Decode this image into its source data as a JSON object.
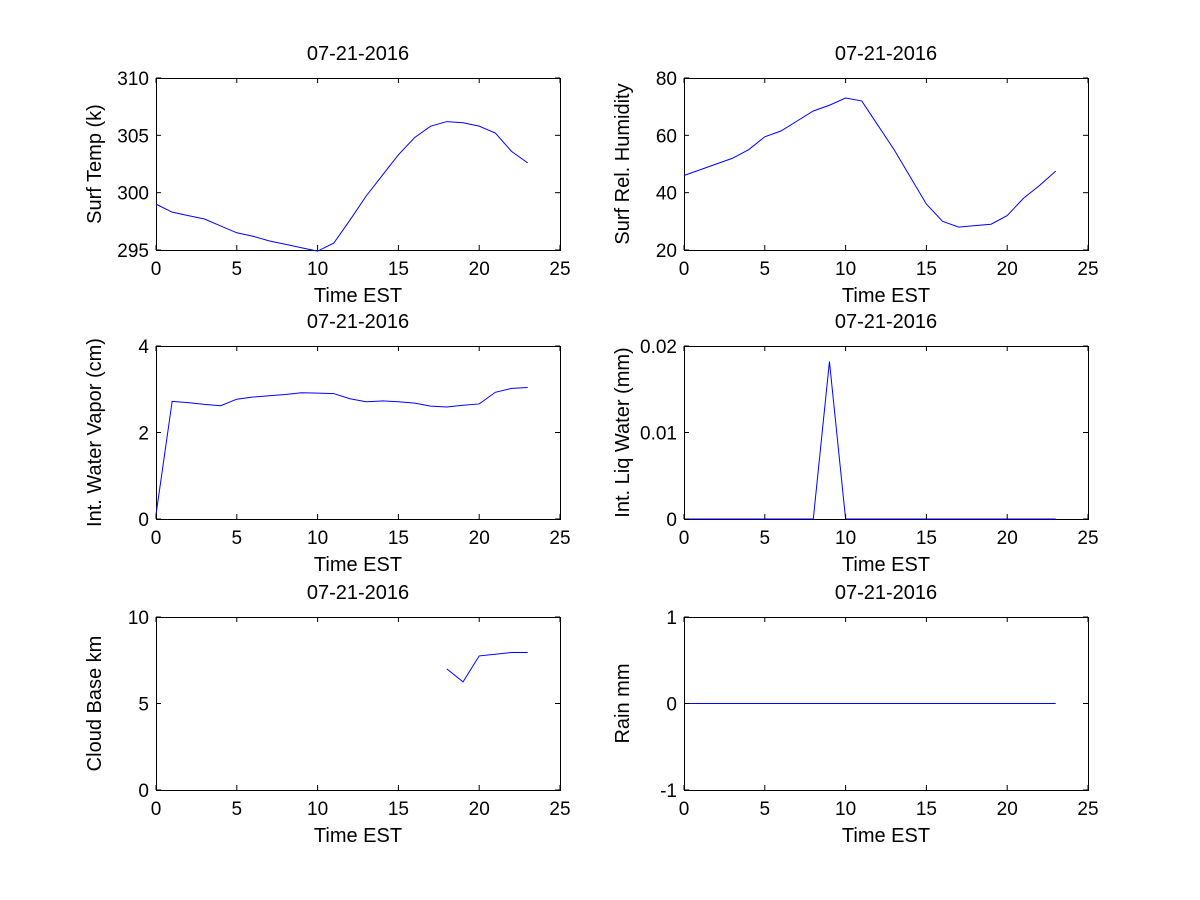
{
  "chart_data": [
    {
      "type": "line",
      "title": "07-21-2016",
      "xlabel": "Time EST",
      "ylabel": "Surf Temp (k)",
      "xlim": [
        0,
        25
      ],
      "ylim": [
        295,
        310
      ],
      "xticks": [
        0,
        5,
        10,
        15,
        20,
        25
      ],
      "yticks": [
        295,
        300,
        305,
        310
      ],
      "grid": false,
      "series": [
        {
          "color": "#0000ff",
          "x": [
            0,
            1,
            2,
            3,
            4,
            5,
            6,
            7,
            8,
            9,
            10,
            11,
            12,
            13,
            14,
            15,
            16,
            17,
            18,
            19,
            20,
            21,
            22,
            23
          ],
          "y": [
            299.0,
            298.3,
            298.0,
            297.7,
            297.1,
            296.5,
            296.2,
            295.8,
            295.5,
            295.2,
            294.9,
            295.6,
            297.6,
            299.7,
            301.5,
            303.3,
            304.8,
            305.8,
            306.2,
            306.1,
            305.8,
            305.2,
            303.6,
            302.6
          ]
        }
      ]
    },
    {
      "type": "line",
      "title": "07-21-2016",
      "xlabel": "Time EST",
      "ylabel": "Surf Rel. Humidity",
      "xlim": [
        0,
        25
      ],
      "ylim": [
        20,
        80
      ],
      "xticks": [
        0,
        5,
        10,
        15,
        20,
        25
      ],
      "yticks": [
        20,
        40,
        60,
        80
      ],
      "grid": false,
      "series": [
        {
          "color": "#0000ff",
          "x": [
            0,
            1,
            2,
            3,
            4,
            5,
            6,
            7,
            8,
            9,
            10,
            11,
            12,
            13,
            14,
            15,
            16,
            17,
            18,
            19,
            20,
            21,
            22,
            23
          ],
          "y": [
            46,
            48,
            50,
            52,
            55,
            59.5,
            61.5,
            65,
            68.5,
            70.5,
            73,
            72,
            63.5,
            55,
            45.5,
            36,
            30,
            28,
            28.5,
            29,
            32,
            38,
            42.5,
            47.5
          ]
        }
      ]
    },
    {
      "type": "line",
      "title": "07-21-2016",
      "xlabel": "Time EST",
      "ylabel": "Int. Water Vapor (cm)",
      "xlim": [
        0,
        25
      ],
      "ylim": [
        0,
        4
      ],
      "xticks": [
        0,
        5,
        10,
        15,
        20,
        25
      ],
      "yticks": [
        0,
        2,
        4
      ],
      "grid": false,
      "series": [
        {
          "color": "#0000ff",
          "x": [
            0,
            1,
            2,
            3,
            4,
            5,
            6,
            7,
            8,
            9,
            10,
            11,
            12,
            13,
            14,
            15,
            16,
            17,
            18,
            19,
            20,
            21,
            22,
            23
          ],
          "y": [
            0.1,
            2.72,
            2.69,
            2.65,
            2.62,
            2.77,
            2.82,
            2.85,
            2.88,
            2.92,
            2.91,
            2.9,
            2.78,
            2.71,
            2.73,
            2.71,
            2.68,
            2.61,
            2.59,
            2.63,
            2.66,
            2.93,
            3.02,
            3.04
          ]
        }
      ]
    },
    {
      "type": "line",
      "title": "07-21-2016",
      "xlabel": "Time EST",
      "ylabel": "Int. Liq Water (mm)",
      "xlim": [
        0,
        25
      ],
      "ylim": [
        0,
        0.02
      ],
      "xticks": [
        0,
        5,
        10,
        15,
        20,
        25
      ],
      "yticks": [
        0,
        0.01,
        0.02
      ],
      "grid": false,
      "series": [
        {
          "color": "#0000ff",
          "x": [
            0,
            1,
            2,
            3,
            4,
            5,
            6,
            7,
            8,
            9,
            10,
            11,
            12,
            13,
            14,
            15,
            16,
            17,
            18,
            19,
            20,
            21,
            22,
            23
          ],
          "y": [
            0,
            0,
            0,
            0,
            0,
            0,
            0,
            0,
            0,
            0.0182,
            0,
            0,
            0,
            0,
            0,
            0,
            0,
            0,
            0,
            0,
            0,
            0,
            0,
            0
          ]
        }
      ]
    },
    {
      "type": "line",
      "title": "07-21-2016",
      "xlabel": "Time EST",
      "ylabel": "Cloud Base km",
      "xlim": [
        0,
        25
      ],
      "ylim": [
        0,
        10
      ],
      "xticks": [
        0,
        5,
        10,
        15,
        20,
        25
      ],
      "yticks": [
        0,
        5,
        10
      ],
      "grid": false,
      "series": [
        {
          "color": "#0000ff",
          "x": [
            18,
            19,
            20,
            21,
            22,
            23
          ],
          "y": [
            7.0,
            6.25,
            7.75,
            7.85,
            7.95,
            7.95
          ]
        }
      ]
    },
    {
      "type": "line",
      "title": "07-21-2016",
      "xlabel": "Time EST",
      "ylabel": "Rain mm",
      "xlim": [
        0,
        25
      ],
      "ylim": [
        -1,
        1
      ],
      "xticks": [
        0,
        5,
        10,
        15,
        20,
        25
      ],
      "yticks": [
        -1,
        0,
        1
      ],
      "grid": false,
      "series": [
        {
          "color": "#0000ff",
          "x": [
            0,
            1,
            2,
            3,
            4,
            5,
            6,
            7,
            8,
            9,
            10,
            11,
            12,
            13,
            14,
            15,
            16,
            17,
            18,
            19,
            20,
            21,
            22,
            23
          ],
          "y": [
            0,
            0,
            0,
            0,
            0,
            0,
            0,
            0,
            0,
            0,
            0,
            0,
            0,
            0,
            0,
            0,
            0,
            0,
            0,
            0,
            0,
            0,
            0,
            0
          ]
        }
      ]
    }
  ]
}
